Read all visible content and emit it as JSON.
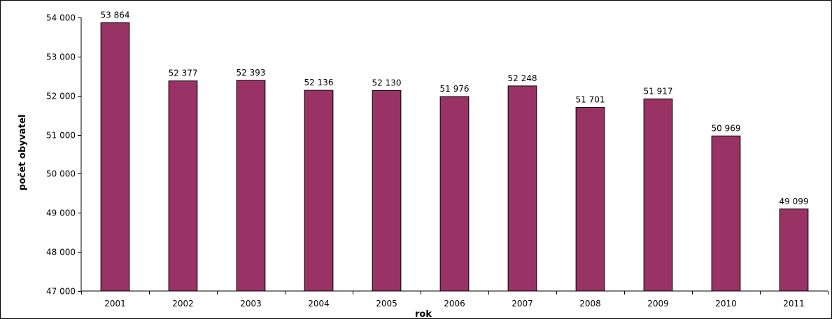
{
  "chart_data": {
    "type": "bar",
    "title": "",
    "xlabel": "rok",
    "ylabel": "počet obyvatel",
    "categories": [
      "2001",
      "2002",
      "2003",
      "2004",
      "2005",
      "2006",
      "2007",
      "2008",
      "2009",
      "2010",
      "2011"
    ],
    "values": [
      53864,
      52377,
      52393,
      52136,
      52130,
      51976,
      52248,
      51701,
      51917,
      50969,
      49099
    ],
    "value_labels": [
      "53 864",
      "52 377",
      "52 393",
      "52 136",
      "52 130",
      "51 976",
      "52 248",
      "51 701",
      "51 917",
      "50 969",
      "49 099"
    ],
    "ylim": [
      47000,
      54000
    ],
    "y_ticks": [
      47000,
      48000,
      49000,
      50000,
      51000,
      52000,
      53000,
      54000
    ],
    "y_tick_labels": [
      "47 000",
      "48 000",
      "49 000",
      "50 000",
      "51 000",
      "52 000",
      "53 000",
      "54 000"
    ],
    "grid": false,
    "legend": "none",
    "colors": {
      "bar_fill": "#993366",
      "bar_stroke": "#000000",
      "axis": "#000000"
    }
  }
}
